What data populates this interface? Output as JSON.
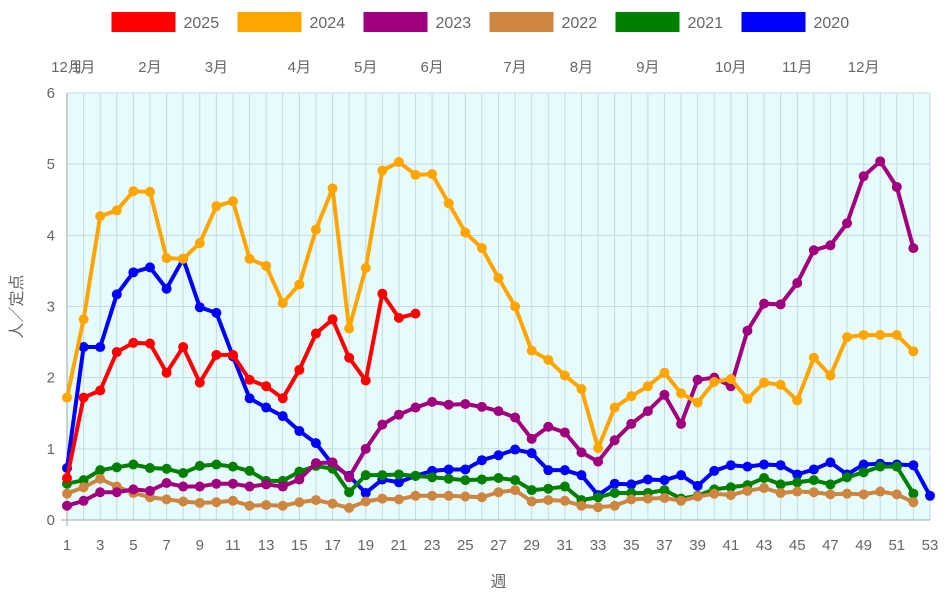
{
  "chart_data": {
    "type": "line",
    "xlabel": "週",
    "ylabel": "人／定点",
    "xlim": [
      1,
      53
    ],
    "ylim": [
      0,
      6
    ],
    "x_ticks": [
      1,
      3,
      5,
      7,
      9,
      11,
      13,
      15,
      17,
      19,
      21,
      23,
      25,
      27,
      29,
      31,
      33,
      35,
      37,
      39,
      41,
      43,
      45,
      47,
      49,
      51,
      53
    ],
    "y_ticks": [
      0,
      1,
      2,
      3,
      4,
      5,
      6
    ],
    "grid": true,
    "legend_position": "top",
    "plot_background": "#e6fbfb",
    "month_labels": [
      {
        "label": "12月",
        "week": 1
      },
      {
        "label": "1月",
        "week": 2
      },
      {
        "label": "2月",
        "week": 6
      },
      {
        "label": "3月",
        "week": 10
      },
      {
        "label": "4月",
        "week": 15
      },
      {
        "label": "5月",
        "week": 19
      },
      {
        "label": "6月",
        "week": 23
      },
      {
        "label": "7月",
        "week": 28
      },
      {
        "label": "8月",
        "week": 32
      },
      {
        "label": "9月",
        "week": 36
      },
      {
        "label": "10月",
        "week": 41
      },
      {
        "label": "11月",
        "week": 45
      },
      {
        "label": "12月",
        "week": 49
      }
    ],
    "series": [
      {
        "name": "2025",
        "color": "#ff0000",
        "start_week": 1,
        "values": [
          0.59,
          1.72,
          1.82,
          2.36,
          2.49,
          2.48,
          2.07,
          2.43,
          1.93,
          2.32,
          2.32,
          1.97,
          1.88,
          1.71,
          2.11,
          2.62,
          2.82,
          2.28,
          1.96,
          3.18,
          2.84,
          2.9
        ]
      },
      {
        "name": "2024",
        "color": "#ffa500",
        "start_week": 1,
        "values": [
          1.72,
          2.82,
          4.27,
          4.35,
          4.62,
          4.61,
          3.68,
          3.67,
          3.89,
          4.41,
          4.48,
          3.67,
          3.57,
          3.05,
          3.31,
          4.08,
          4.66,
          2.69,
          3.54,
          4.91,
          5.03,
          4.85,
          4.86,
          4.45,
          4.04,
          3.82,
          3.4,
          3.0,
          2.38,
          2.25,
          2.03,
          1.84,
          1.01,
          1.58,
          1.74,
          1.88,
          2.07,
          1.78,
          1.65,
          1.94,
          1.98,
          1.7,
          1.93,
          1.9,
          1.68,
          2.28,
          2.03,
          2.57,
          2.6,
          2.6,
          2.6,
          2.37
        ]
      },
      {
        "name": "2023",
        "color": "#a0007f",
        "start_week": 1,
        "values": [
          0.2,
          0.27,
          0.39,
          0.39,
          0.43,
          0.41,
          0.52,
          0.47,
          0.47,
          0.51,
          0.51,
          0.47,
          0.5,
          0.47,
          0.57,
          0.8,
          0.81,
          0.6,
          1.0,
          1.34,
          1.48,
          1.58,
          1.66,
          1.62,
          1.63,
          1.59,
          1.53,
          1.44,
          1.14,
          1.31,
          1.23,
          0.95,
          0.82,
          1.12,
          1.35,
          1.53,
          1.76,
          1.35,
          1.97,
          2.0,
          1.88,
          2.66,
          3.04,
          3.03,
          3.33,
          3.79,
          3.86,
          4.17,
          4.83,
          5.04,
          4.68,
          3.82
        ]
      },
      {
        "name": "2022",
        "color": "#cd853f",
        "start_week": 1,
        "values": [
          0.37,
          0.46,
          0.58,
          0.47,
          0.38,
          0.32,
          0.29,
          0.26,
          0.24,
          0.25,
          0.27,
          0.2,
          0.21,
          0.2,
          0.25,
          0.28,
          0.23,
          0.17,
          0.26,
          0.3,
          0.29,
          0.34,
          0.34,
          0.34,
          0.33,
          0.32,
          0.39,
          0.42,
          0.26,
          0.28,
          0.27,
          0.2,
          0.18,
          0.2,
          0.29,
          0.3,
          0.31,
          0.27,
          0.33,
          0.37,
          0.35,
          0.41,
          0.45,
          0.38,
          0.4,
          0.39,
          0.36,
          0.37,
          0.36,
          0.4,
          0.36,
          0.25
        ]
      },
      {
        "name": "2021",
        "color": "#008000",
        "start_week": 1,
        "values": [
          0.51,
          0.56,
          0.7,
          0.74,
          0.78,
          0.73,
          0.72,
          0.66,
          0.76,
          0.78,
          0.75,
          0.69,
          0.55,
          0.55,
          0.68,
          0.76,
          0.72,
          0.39,
          0.63,
          0.63,
          0.64,
          0.62,
          0.6,
          0.58,
          0.56,
          0.57,
          0.59,
          0.56,
          0.42,
          0.44,
          0.47,
          0.28,
          0.32,
          0.38,
          0.38,
          0.38,
          0.42,
          0.3,
          0.34,
          0.43,
          0.46,
          0.49,
          0.59,
          0.5,
          0.53,
          0.56,
          0.5,
          0.6,
          0.67,
          0.75,
          0.75,
          0.37
        ]
      },
      {
        "name": "2020",
        "color": "#0000ff",
        "start_week": 1,
        "values": [
          0.73,
          2.43,
          2.43,
          3.17,
          3.48,
          3.55,
          3.25,
          3.67,
          2.99,
          2.91,
          2.3,
          1.71,
          1.58,
          1.46,
          1.25,
          1.08,
          0.78,
          0.62,
          0.38,
          0.57,
          0.53,
          0.62,
          0.69,
          0.71,
          0.71,
          0.84,
          0.91,
          0.99,
          0.94,
          0.7,
          0.7,
          0.63,
          0.35,
          0.51,
          0.5,
          0.57,
          0.56,
          0.63,
          0.48,
          0.69,
          0.77,
          0.75,
          0.78,
          0.77,
          0.64,
          0.71,
          0.81,
          0.64,
          0.78,
          0.79,
          0.78,
          0.77,
          0.34
        ]
      }
    ]
  }
}
